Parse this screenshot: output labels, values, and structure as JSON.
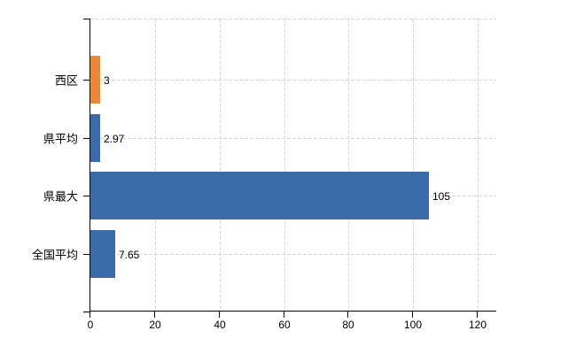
{
  "chart_data": {
    "type": "bar",
    "orientation": "horizontal",
    "title": "",
    "categories": [
      "西区",
      "県平均",
      "県最大",
      "全国平均"
    ],
    "values": [
      3,
      2.97,
      105,
      7.65
    ],
    "value_labels": [
      "3",
      "2.97",
      "105",
      "7.65"
    ],
    "bar_colors": [
      "#e8883c",
      "#3a6ba8",
      "#3a6ba8",
      "#3a6ba8"
    ],
    "x_tick_values": [
      0,
      20,
      40,
      60,
      80,
      100,
      120
    ],
    "x_tick_labels": [
      "0",
      "20",
      "40",
      "60",
      "80",
      "100",
      "120"
    ],
    "xlim": [
      0,
      126
    ],
    "ylabel": "",
    "xlabel": "",
    "grid": "dashed",
    "legend": "none",
    "colors": {
      "grid": "#d5d8d2",
      "axis": "#000000",
      "text": "#000000",
      "background": "#ffffff",
      "highlight_bar": "#e8883c",
      "default_bar": "#3a6ba8"
    }
  }
}
